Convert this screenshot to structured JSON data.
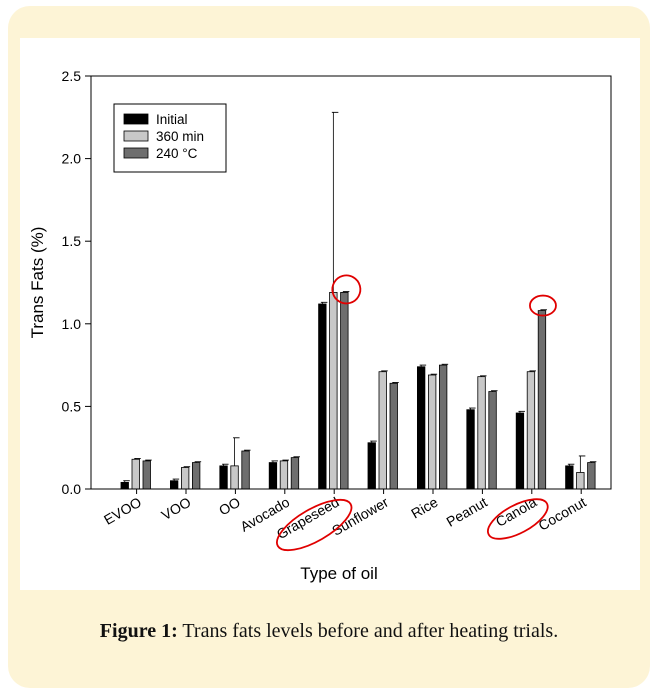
{
  "chart_data": {
    "type": "bar",
    "xlabel": "Type of oil",
    "ylabel": "Trans Fats (%)",
    "ylim": [
      0,
      2.5
    ],
    "yticks": [
      "0.0",
      "0.5",
      "1.0",
      "1.5",
      "2.0",
      "2.5"
    ],
    "ytick_values": [
      0,
      0.5,
      1.0,
      1.5,
      2.0,
      2.5
    ],
    "categories": [
      "EVOO",
      "VOO",
      "OO",
      "Avocado",
      "Grapeseed",
      "Sunflower",
      "Rice",
      "Peanut",
      "Canola",
      "Coconut"
    ],
    "series": [
      {
        "name": "Initial",
        "color": "#000000",
        "values": [
          0.04,
          0.05,
          0.14,
          0.16,
          1.12,
          0.28,
          0.74,
          0.48,
          0.46,
          0.14
        ],
        "errors": [
          0.01,
          0.01,
          0.01,
          0.01,
          0.01,
          0.01,
          0.01,
          0.01,
          0.01,
          0.01
        ]
      },
      {
        "name": "360 min",
        "color": "#c8c8c8",
        "values": [
          0.18,
          0.13,
          0.14,
          0.17,
          1.19,
          0.71,
          0.69,
          0.68,
          0.71,
          0.1
        ],
        "errors": [
          0.005,
          0.005,
          0.17,
          0.005,
          1.09,
          0.005,
          0.005,
          0.005,
          0.005,
          0.1
        ]
      },
      {
        "name": "240 °C",
        "color": "#6e6e6e",
        "values": [
          0.17,
          0.16,
          0.23,
          0.19,
          1.19,
          0.64,
          0.75,
          0.59,
          1.08,
          0.16
        ],
        "errors": [
          0.005,
          0.005,
          0.005,
          0.005,
          0.005,
          0.005,
          0.005,
          0.005,
          0.005,
          0.005
        ]
      }
    ],
    "legend_position": "top-left",
    "highlighted": [
      "Grapeseed",
      "Canola"
    ],
    "highlight_color": "#e00000"
  },
  "caption": {
    "label": "Figure 1:",
    "text": " Trans fats levels before and after heating trials."
  }
}
